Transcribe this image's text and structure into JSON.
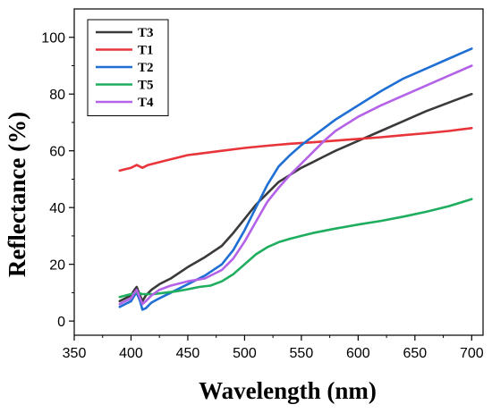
{
  "chart_data": {
    "type": "line",
    "xlabel": "Wavelength (nm)",
    "ylabel": "Reflectance (%)",
    "xlim": [
      350,
      710
    ],
    "ylim": [
      -5,
      110
    ],
    "xticks": [
      350,
      400,
      450,
      500,
      550,
      600,
      650,
      700
    ],
    "yticks": [
      0,
      20,
      40,
      60,
      80,
      100
    ],
    "grid": false,
    "legend": "top-left",
    "series": [
      {
        "name": "T3",
        "color": "#3a3a3a",
        "x": [
          390,
          395,
          400,
          403,
          405,
          408,
          410,
          413,
          418,
          425,
          435,
          450,
          465,
          480,
          490,
          500,
          510,
          520,
          530,
          540,
          550,
          560,
          570,
          580,
          600,
          620,
          640,
          660,
          680,
          700
        ],
        "y": [
          7,
          8,
          9,
          11,
          12,
          9,
          7,
          9,
          11,
          13,
          15,
          19,
          22.5,
          26.5,
          31,
          36,
          41,
          45,
          49,
          51.5,
          54,
          56,
          58,
          60,
          63.5,
          67,
          70.5,
          74,
          77,
          80
        ]
      },
      {
        "name": "T1",
        "color": "#e8353b",
        "x": [
          390,
          395,
          400,
          405,
          410,
          415,
          420,
          430,
          440,
          450,
          460,
          470,
          480,
          500,
          520,
          540,
          560,
          580,
          600,
          620,
          640,
          660,
          680,
          700
        ],
        "y": [
          53,
          53.5,
          54,
          55,
          54,
          55,
          55.5,
          56.5,
          57.5,
          58.5,
          59,
          59.5,
          60,
          61,
          61.8,
          62.5,
          63,
          63.6,
          64.2,
          64.8,
          65.5,
          66.2,
          67,
          68
        ]
      },
      {
        "name": "T2",
        "color": "#1f6fd4",
        "x": [
          390,
          395,
          400,
          403,
          405,
          408,
          410,
          413,
          418,
          425,
          435,
          450,
          465,
          480,
          490,
          500,
          510,
          520,
          530,
          540,
          550,
          560,
          570,
          580,
          600,
          620,
          640,
          660,
          680,
          700
        ],
        "y": [
          5,
          6,
          7,
          9,
          10,
          7,
          4,
          4.5,
          6.5,
          8,
          10,
          13,
          16,
          20,
          25,
          32,
          40,
          48,
          54.5,
          58.5,
          62,
          65,
          68,
          71,
          76,
          81,
          85.5,
          89,
          92.5,
          96
        ]
      },
      {
        "name": "T5",
        "color": "#1fae5f",
        "x": [
          390,
          395,
          400,
          405,
          410,
          415,
          420,
          430,
          440,
          450,
          460,
          470,
          480,
          490,
          500,
          510,
          520,
          530,
          540,
          550,
          560,
          580,
          600,
          620,
          640,
          660,
          680,
          700
        ],
        "y": [
          8.5,
          9,
          9.5,
          10,
          9.5,
          9.5,
          9.5,
          10,
          10.5,
          11.2,
          12,
          12.5,
          14,
          16.5,
          20,
          23.5,
          26,
          27.8,
          29,
          30,
          31,
          32.6,
          34,
          35.3,
          36.8,
          38.5,
          40.5,
          43
        ]
      },
      {
        "name": "T4",
        "color": "#b462e8",
        "x": [
          390,
          395,
          400,
          403,
          405,
          408,
          410,
          413,
          418,
          425,
          435,
          450,
          465,
          480,
          490,
          500,
          510,
          520,
          530,
          540,
          550,
          560,
          570,
          580,
          600,
          620,
          640,
          660,
          680,
          700
        ],
        "y": [
          6,
          7,
          8,
          10,
          11,
          8,
          6,
          7,
          9,
          11,
          12.5,
          14,
          15,
          18,
          22,
          28,
          35,
          42,
          47,
          51.5,
          55.5,
          59.5,
          63.5,
          67,
          72,
          76,
          79.5,
          83,
          86.5,
          90
        ]
      }
    ]
  }
}
